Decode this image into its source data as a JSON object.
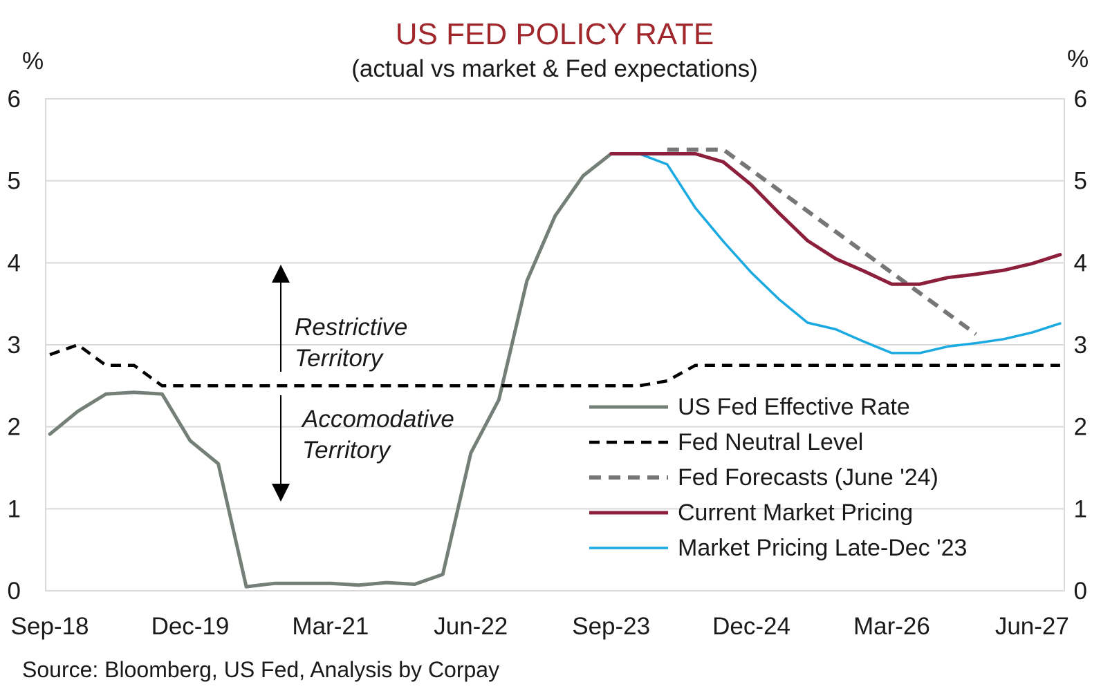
{
  "chart_data": {
    "type": "line",
    "title": "US FED POLICY RATE",
    "subtitle": "(actual vs market & Fed expectations)",
    "ylabel_left": "%",
    "ylabel_right": "%",
    "ylim": [
      0,
      6
    ],
    "y_ticks": [
      0,
      1,
      2,
      3,
      4,
      5,
      6
    ],
    "y_tick_labels": [
      "0",
      "1",
      "2",
      "3",
      "4",
      "5",
      "6"
    ],
    "x_ticks": [
      {
        "q": 0,
        "label": "Sep-18"
      },
      {
        "q": 5,
        "label": "Dec-19"
      },
      {
        "q": 10,
        "label": "Mar-21"
      },
      {
        "q": 15,
        "label": "Jun-22"
      },
      {
        "q": 20,
        "label": "Sep-23"
      },
      {
        "q": 25,
        "label": "Dec-24"
      },
      {
        "q": 30,
        "label": "Mar-26"
      },
      {
        "q": 35,
        "label": "Jun-27"
      }
    ],
    "x_range_quarters": [
      -0.15,
      36.15
    ],
    "grid": true,
    "legend_position": "bottom-right",
    "colors": {
      "title": "#a0282d",
      "effective": "#747f78",
      "neutral": "#000000",
      "fed_forecast": "#767676",
      "current_market": "#8c1f3c",
      "late_dec": "#1ba9e1",
      "grid": "#d9d9d9"
    },
    "series": [
      {
        "name": "US Fed Effective Rate",
        "style": "solid",
        "color_key": "effective",
        "x": [
          0,
          1,
          2,
          3,
          4,
          5,
          6,
          7,
          8,
          9,
          10,
          11,
          12,
          13,
          14,
          15,
          16,
          17,
          18,
          19,
          20,
          21,
          22
        ],
        "values": [
          1.91,
          2.19,
          2.4,
          2.42,
          2.4,
          1.83,
          1.55,
          0.05,
          0.09,
          0.09,
          0.09,
          0.07,
          0.1,
          0.08,
          0.2,
          1.68,
          2.33,
          3.78,
          4.57,
          5.06,
          5.33,
          5.33,
          5.33
        ]
      },
      {
        "name": "Fed Neutral Level",
        "style": "dashed",
        "color_key": "neutral",
        "x": [
          0,
          1,
          2,
          3,
          4,
          5,
          6,
          7,
          8,
          9,
          10,
          11,
          12,
          13,
          14,
          15,
          16,
          17,
          18,
          19,
          20,
          21,
          22,
          23,
          24,
          25,
          26,
          27,
          28,
          29,
          30,
          31,
          32,
          33,
          34,
          35,
          36
        ],
        "values": [
          2.88,
          3.0,
          2.75,
          2.75,
          2.5,
          2.5,
          2.5,
          2.5,
          2.5,
          2.5,
          2.5,
          2.5,
          2.5,
          2.5,
          2.5,
          2.5,
          2.5,
          2.5,
          2.5,
          2.5,
          2.5,
          2.5,
          2.56,
          2.75,
          2.75,
          2.75,
          2.75,
          2.75,
          2.75,
          2.75,
          2.75,
          2.75,
          2.75,
          2.75,
          2.75,
          2.75,
          2.75
        ]
      },
      {
        "name": "Fed Forecasts (June '24)",
        "style": "dashed",
        "color_key": "fed_forecast",
        "x": [
          22,
          23,
          24,
          25,
          26,
          27,
          28,
          29,
          30,
          31,
          32,
          33
        ],
        "values": [
          5.38,
          5.38,
          5.38,
          5.13,
          4.88,
          4.63,
          4.38,
          4.13,
          3.88,
          3.63,
          3.38,
          3.13
        ]
      },
      {
        "name": "Current Market Pricing",
        "style": "solid",
        "color_key": "current_market",
        "x": [
          20,
          21,
          22,
          23,
          24,
          25,
          26,
          27,
          28,
          29,
          30,
          31,
          32,
          33,
          34,
          35,
          36
        ],
        "values": [
          5.33,
          5.33,
          5.33,
          5.33,
          5.23,
          4.95,
          4.6,
          4.27,
          4.05,
          3.9,
          3.74,
          3.74,
          3.82,
          3.86,
          3.91,
          3.99,
          4.1
        ]
      },
      {
        "name": "Market Pricing Late-Dec '23",
        "style": "solid",
        "color_key": "late_dec",
        "x": [
          20,
          21,
          22,
          23,
          24,
          25,
          26,
          27,
          28,
          29,
          30,
          31,
          32,
          33,
          34,
          35,
          36
        ],
        "values": [
          5.33,
          5.33,
          5.2,
          4.67,
          4.26,
          3.88,
          3.55,
          3.27,
          3.19,
          3.04,
          2.9,
          2.9,
          2.98,
          3.02,
          3.07,
          3.15,
          3.26
        ]
      }
    ],
    "annotations": [
      {
        "lines": [
          "Restrictive",
          "Territory"
        ]
      },
      {
        "lines": [
          "Accomodative",
          "Territory"
        ]
      }
    ]
  },
  "source": "Source: Bloomberg, US Fed, Analysis by Corpay"
}
